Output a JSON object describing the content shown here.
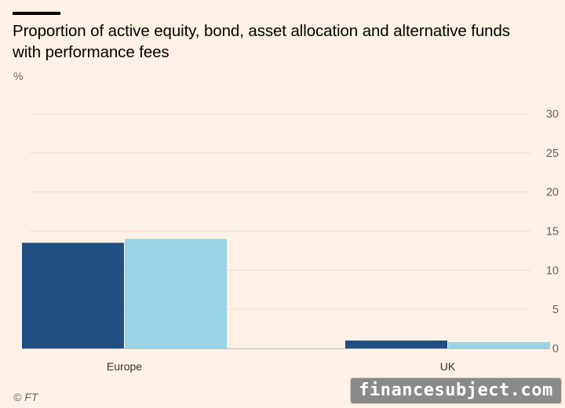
{
  "header": {
    "title": "Proportion of active equity, bond, asset allocation and alternative funds with performance fees",
    "unit": "%"
  },
  "footer": {
    "source": "© FT",
    "watermark": "financesubject.com"
  },
  "colors": {
    "background": "#fff1e5",
    "series_dark": "#1f4f82",
    "series_light": "#99d3e6",
    "gridline": "#e9ddd2",
    "baseline": "#c8bdb3"
  },
  "chart_data": {
    "type": "bar",
    "title": "Proportion of active equity, bond, asset allocation and alternative funds with performance fees",
    "xlabel": "",
    "ylabel": "%",
    "categories": [
      "Europe",
      "UK"
    ],
    "series": [
      {
        "values": [
          13.5,
          1.0
        ],
        "color": "#1f4f82"
      },
      {
        "values": [
          14.0,
          0.8
        ],
        "color": "#99d3e6"
      }
    ],
    "ylim": [
      0,
      30
    ],
    "yticks": [
      "0",
      "5",
      "10",
      "15",
      "20",
      "25",
      "30"
    ],
    "grid": true,
    "y_axis_side": "right",
    "legend": "none"
  }
}
